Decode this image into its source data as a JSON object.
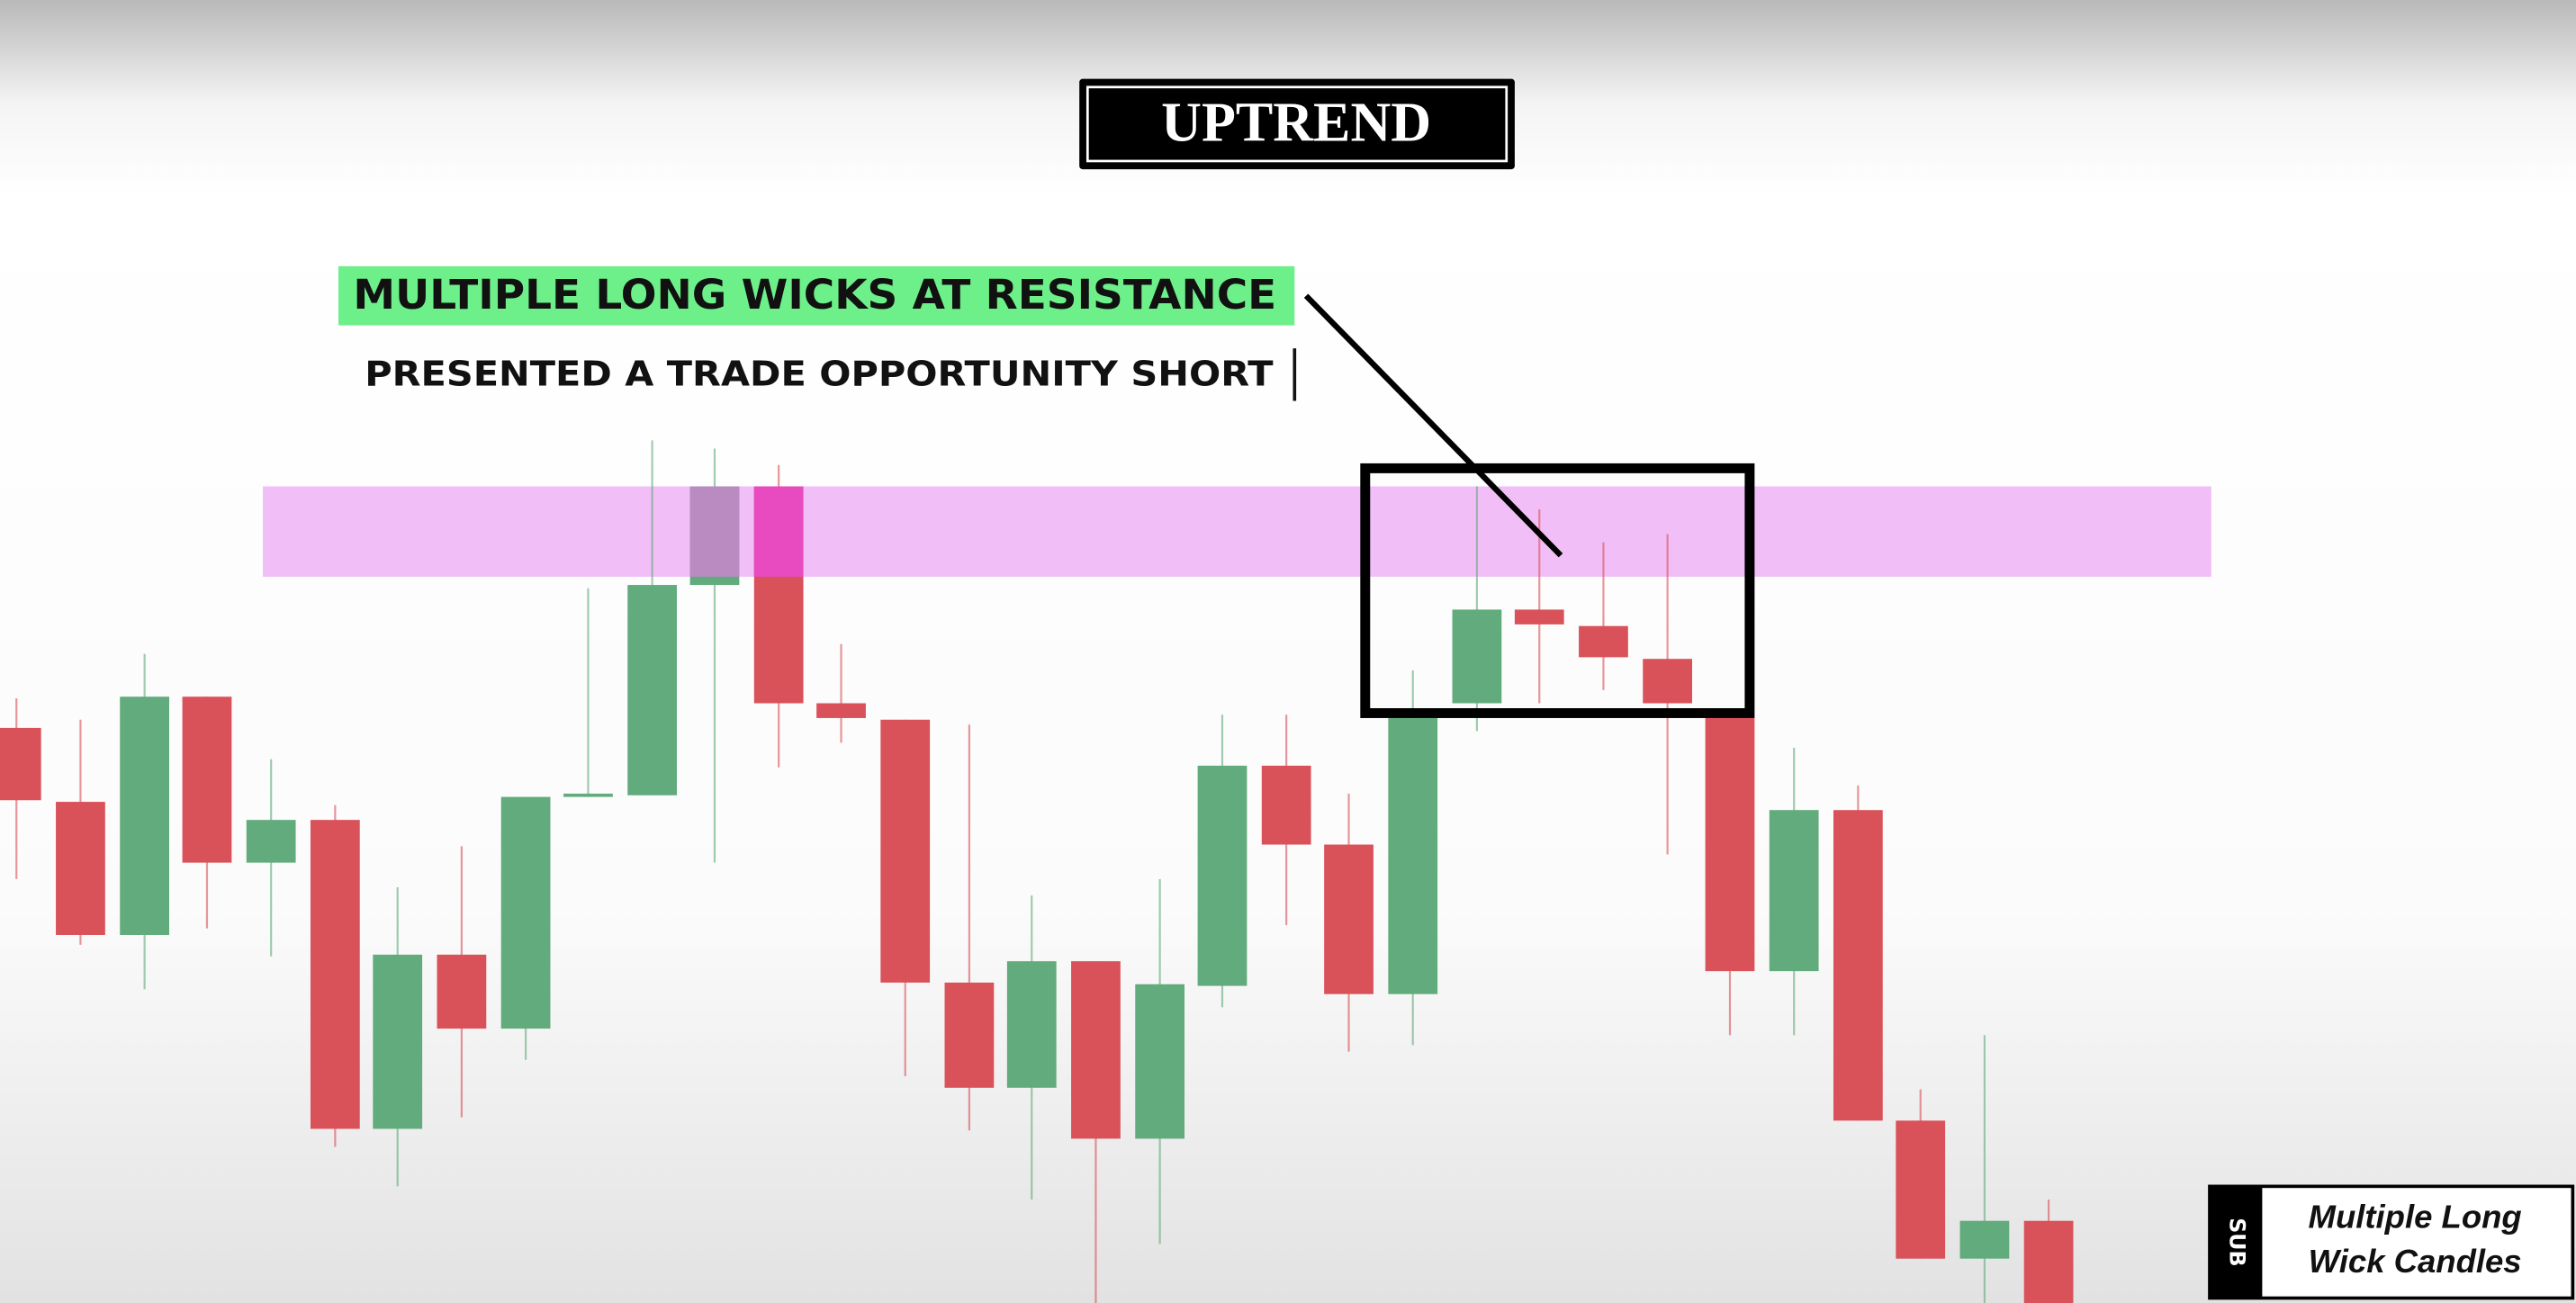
{
  "title": "UPTREND",
  "annotation": {
    "headline": "MULTIPLE LONG WICKS AT RESISTANCE",
    "subline": "PRESENTED A TRADE OPPORTUNITY SHORT"
  },
  "badge": {
    "logo": "SUB",
    "caption": [
      "Multiple Long",
      "Wick Candles"
    ]
  }
}
